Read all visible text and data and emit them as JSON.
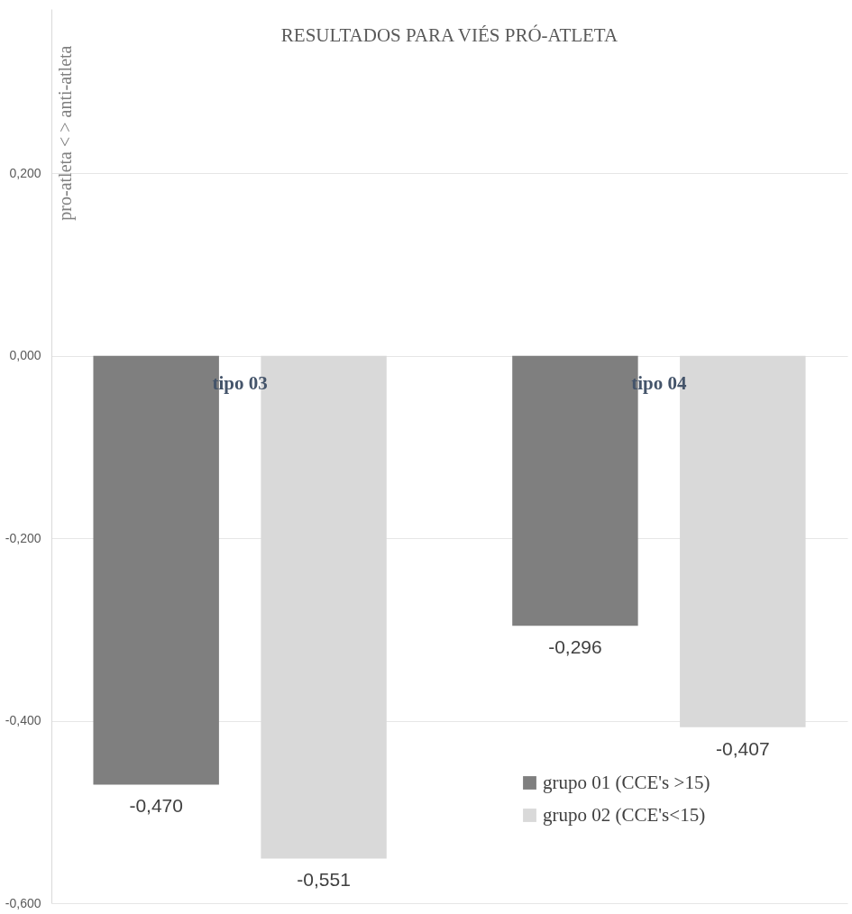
{
  "chart_data": {
    "type": "bar",
    "title": "RESULTADOS PARA VIÉS PRÓ-ATLETA",
    "ylabel": "pro-atleta < > anti-atleta",
    "categories": [
      "tipo 03",
      "tipo 04"
    ],
    "series": [
      {
        "name": "grupo 01 (CCE's >15)",
        "color": "#7f7f7f",
        "values": [
          -0.47,
          -0.296
        ],
        "value_labels": [
          "-0,470",
          "-0,296"
        ]
      },
      {
        "name": "grupo 02 (CCE's<15)",
        "color": "#d9d9d9",
        "values": [
          -0.551,
          -0.407
        ],
        "value_labels": [
          "-0,551",
          "-0,407"
        ]
      }
    ],
    "ylim": [
      -0.6,
      0.38
    ],
    "yticks": [
      {
        "value": -0.6,
        "label": "-0,600"
      },
      {
        "value": -0.4,
        "label": "-0,400"
      },
      {
        "value": -0.2,
        "label": "-0,200"
      },
      {
        "value": 0,
        "label": "0,000"
      },
      {
        "value": 0.2,
        "label": "0,200"
      }
    ],
    "grid": "y",
    "legend": "bottom right"
  }
}
